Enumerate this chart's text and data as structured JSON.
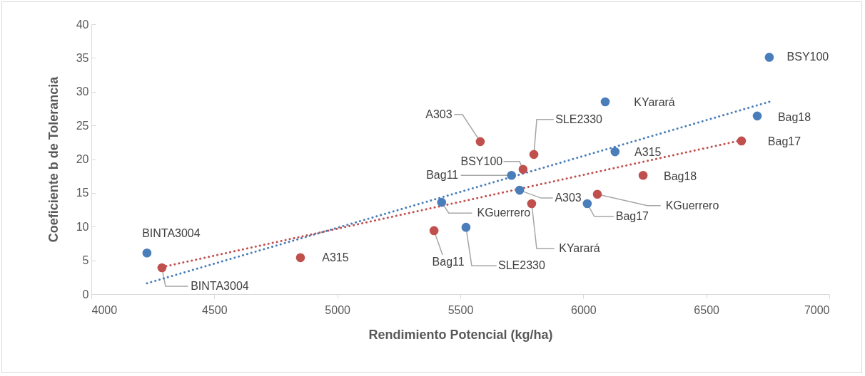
{
  "chart_data": {
    "type": "scatter",
    "xlabel": "Rendimiento Potencial (kg/ha)",
    "ylabel": "Coeficiente b de Tolerancia",
    "xlim": [
      4000,
      7000
    ],
    "xticks": [
      4000,
      4500,
      5000,
      5500,
      6000,
      6500,
      7000
    ],
    "ylim": [
      0,
      40
    ],
    "yticks": [
      0,
      5,
      10,
      15,
      20,
      25,
      30,
      35,
      40
    ],
    "series": [
      {
        "marker": "circle",
        "color": "#4a7ebb",
        "x": [
          4226,
          5708,
          5424,
          5741,
          5523,
          6089,
          6129,
          6016,
          6707,
          6756
        ],
        "values": [
          6.1,
          17.6,
          13.6,
          15.4,
          9.9,
          28.5,
          21.1,
          13.4,
          26.4,
          35.1
        ]
      },
      {
        "marker": "circle",
        "color": "#c0504d",
        "x": [
          4287,
          4850,
          5581,
          5799,
          5755,
          5790,
          5393,
          6057,
          6243,
          6643
        ],
        "values": [
          3.9,
          5.4,
          22.6,
          20.7,
          18.5,
          13.4,
          9.4,
          14.8,
          17.6,
          22.7
        ]
      },
      {
        "type": "line",
        "color": "#4a7ebb",
        "line_style": "dotted",
        "x": [
          4226,
          6756
        ],
        "values": [
          1.6,
          28.5
        ]
      },
      {
        "type": "line",
        "color": "#c0504d",
        "line_style": "dotted",
        "x": [
          4287,
          6643
        ],
        "values": [
          4.0,
          22.8
        ]
      }
    ],
    "annotations": [
      {
        "text": "BINTA3004",
        "x": 4226,
        "y": 6.1
      },
      {
        "text": "BINTA3004",
        "x": 4287,
        "y": 3.9
      },
      {
        "text": "A315",
        "x": 4850,
        "y": 5.4
      },
      {
        "text": "A303",
        "x": 5581,
        "y": 22.6
      },
      {
        "text": "SLE2330",
        "x": 5799,
        "y": 20.7
      },
      {
        "text": "BSY100",
        "x": 5755,
        "y": 18.5
      },
      {
        "text": "Bag11",
        "x": 5708,
        "y": 17.6
      },
      {
        "text": "A303",
        "x": 5741,
        "y": 15.4
      },
      {
        "text": "KGuerrero",
        "x": 5424,
        "y": 13.6
      },
      {
        "text": "KYarará",
        "x": 5790,
        "y": 13.4
      },
      {
        "text": "Bag11",
        "x": 5393,
        "y": 9.4
      },
      {
        "text": "SLE2330",
        "x": 5523,
        "y": 9.9
      },
      {
        "text": "KGuerrero",
        "x": 6057,
        "y": 14.8
      },
      {
        "text": "Bag17",
        "x": 6016,
        "y": 13.4
      },
      {
        "text": "KYarará",
        "x": 6089,
        "y": 28.5
      },
      {
        "text": "BSY100",
        "x": 6756,
        "y": 35.1
      },
      {
        "text": "Bag18",
        "x": 6707,
        "y": 26.4
      },
      {
        "text": "Bag17",
        "x": 6643,
        "y": 22.7
      },
      {
        "text": "A315",
        "x": 6129,
        "y": 21.1
      },
      {
        "text": "Bag18",
        "x": 6243,
        "y": 17.6
      }
    ]
  }
}
